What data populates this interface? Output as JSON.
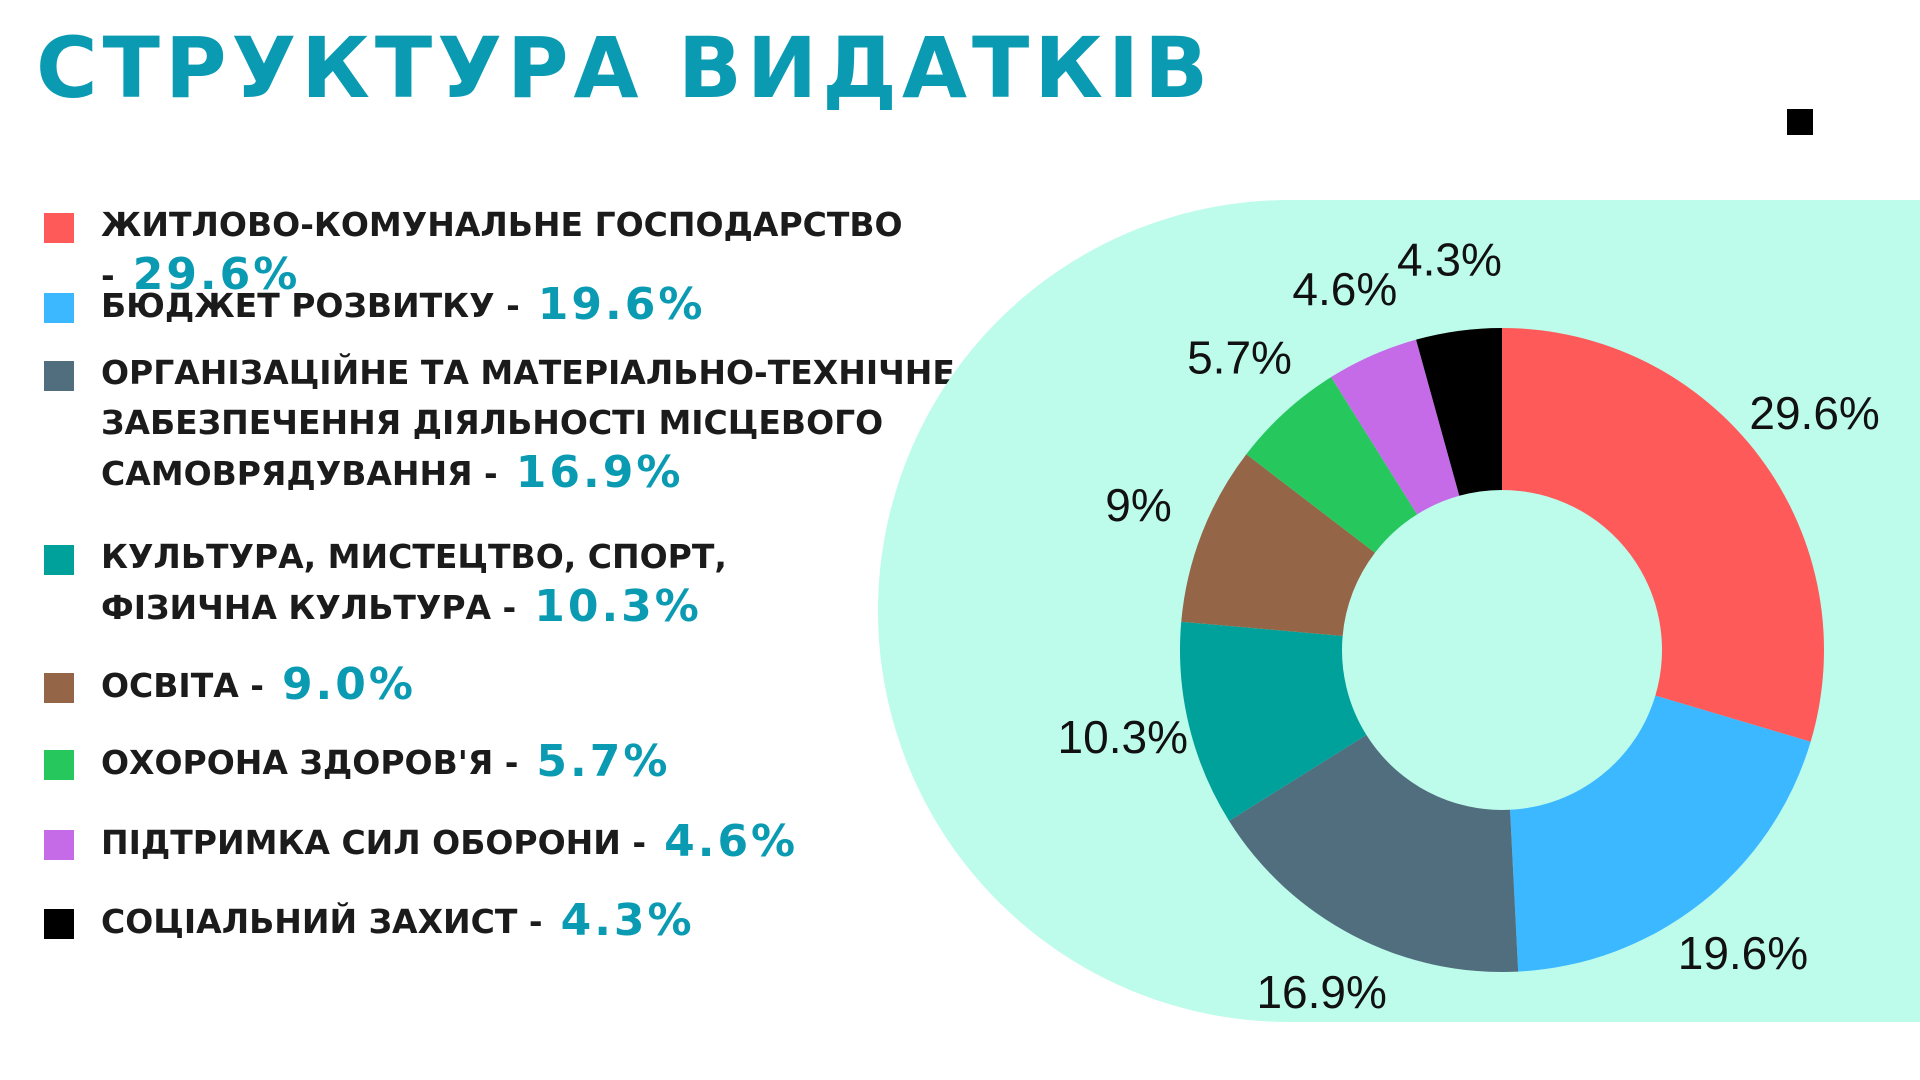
{
  "header": {
    "title": "СТРУКТУРА ВИДАТКІВ"
  },
  "legend": [
    {
      "label": "ЖИТЛОВО-КОМУНАЛЬНЕ ГОСПОДАРСТВО -",
      "pct": "29.6%",
      "color": "#ff5a5a"
    },
    {
      "label": "БЮДЖЕТ РОЗВИТКУ -",
      "pct": "19.6%",
      "color": "#3bb8ff"
    },
    {
      "label": "ОРГАНІЗАЦІЙНЕ ТА МАТЕРІАЛЬНО-ТЕХНІЧНЕ\nЗАБЕЗПЕЧЕННЯ ДІЯЛЬНОСТІ МІСЦЕВОГО\nСАМОВРЯДУВАННЯ -",
      "pct": "16.9%",
      "color": "#516e7f"
    },
    {
      "label": "КУЛЬТУРА, МИСТЕЦТВО, СПОРТ,\nФІЗИЧНА КУЛЬТУРА -",
      "pct": "10.3%",
      "color": "#00a19a"
    },
    {
      "label": "ОСВІТА -",
      "pct": "9.0%",
      "color": "#956548"
    },
    {
      "label": "ОХОРОНА ЗДОРОВ'Я -",
      "pct": "5.7%",
      "color": "#26c85e"
    },
    {
      "label": "ПІДТРИМКА СИЛ ОБОРОНИ -",
      "pct": "4.6%",
      "color": "#c66be8"
    },
    {
      "label": "СОЦІАЛЬНИЙ ЗАХИСТ -",
      "pct": "4.3%",
      "color": "#000000"
    }
  ],
  "chart_data": {
    "type": "pie",
    "donut": true,
    "categories": [
      "ЖИТЛОВО-КОМУНАЛЬНЕ ГОСПОДАРСТВО",
      "БЮДЖЕТ РОЗВИТКУ",
      "ОРГАНІЗАЦІЙНЕ ТА МАТЕРІАЛЬНО-ТЕХНІЧНЕ ЗАБЕЗПЕЧЕННЯ ДІЯЛЬНОСТІ МІСЦЕВОГО САМОВРЯДУВАННЯ",
      "КУЛЬТУРА, МИСТЕЦТВО, СПОРТ, ФІЗИЧНА КУЛЬТУРА",
      "ОСВІТА",
      "ОХОРОНА ЗДОРОВ'Я",
      "ПІДТРИМКА СИЛ ОБОРОНИ",
      "СОЦІАЛЬНИЙ ЗАХИСТ"
    ],
    "values": [
      29.6,
      19.6,
      16.9,
      10.3,
      9.0,
      5.7,
      4.6,
      4.3
    ],
    "data_labels": [
      "29.6%",
      "19.6%",
      "16.9%",
      "10.3%",
      "9%",
      "5.7%",
      "4.6%",
      "4.3%"
    ],
    "colors": [
      "#ff5a5a",
      "#3bb8ff",
      "#516e7f",
      "#00a19a",
      "#956548",
      "#26c85e",
      "#c66be8",
      "#000000"
    ],
    "background_color": "#bdfbeb",
    "title": "",
    "legend_placement": "left"
  }
}
